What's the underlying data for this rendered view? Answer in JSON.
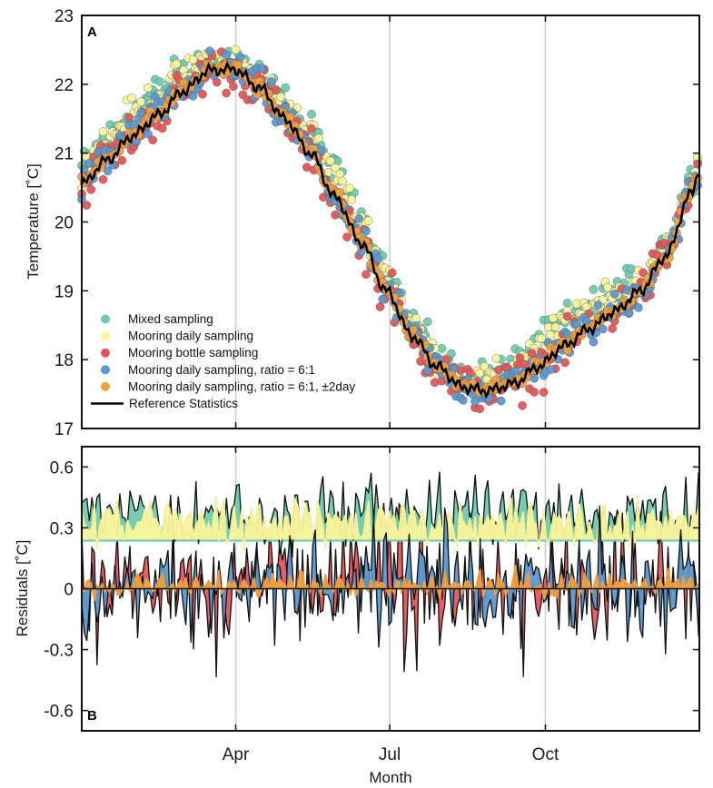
{
  "chart_data": [
    {
      "type": "scatter",
      "panel_label": "A",
      "xlabel": "",
      "ylabel": "Temperature [˚C]",
      "x_ticks": [
        {
          "label": "Apr",
          "day": 91
        },
        {
          "label": "Jul",
          "day": 182
        },
        {
          "label": "Oct",
          "day": 274
        }
      ],
      "xlim": [
        0,
        365
      ],
      "ylim": [
        17,
        23
      ],
      "yticks": [
        17,
        18,
        19,
        20,
        21,
        22,
        23
      ],
      "vertical_gridlines": true,
      "legend_position": "bottom-left",
      "reference_curve": {
        "name": "Reference Statistics",
        "color": "#000000",
        "days": [
          0,
          15,
          30,
          45,
          60,
          75,
          90,
          105,
          120,
          135,
          150,
          165,
          180,
          195,
          210,
          225,
          240,
          255,
          270,
          285,
          300,
          315,
          330,
          345,
          360,
          365
        ],
        "values": [
          20.55,
          20.9,
          21.25,
          21.55,
          21.9,
          22.2,
          22.22,
          21.95,
          21.5,
          21.0,
          20.35,
          19.7,
          19.0,
          18.35,
          17.9,
          17.6,
          17.55,
          17.65,
          17.9,
          18.2,
          18.45,
          18.7,
          19.0,
          19.5,
          20.4,
          20.75
        ]
      },
      "series": [
        {
          "name": "Mixed sampling",
          "color": "#6ecbb0",
          "offset_c": 0.35,
          "spread_c": 0.22
        },
        {
          "name": "Mooring daily sampling",
          "color": "#fbf59c",
          "offset_c": 0.33,
          "spread_c": 0.18
        },
        {
          "name": "Mooring bottle sampling",
          "color": "#e2565a",
          "offset_c": 0.0,
          "spread_c": 0.28
        },
        {
          "name": "Mooring daily sampling, ratio = 6:1",
          "color": "#5b98cf",
          "offset_c": 0.02,
          "spread_c": 0.22
        },
        {
          "name": "Mooring daily sampling, ratio = 6:1, ±2day",
          "color": "#f2a040",
          "offset_c": 0.03,
          "spread_c": 0.08
        }
      ],
      "legend_entries": [
        {
          "label": "Mixed sampling",
          "color": "#6ecbb0",
          "kind": "dot"
        },
        {
          "label": "Mooring daily sampling",
          "color": "#fbf59c",
          "kind": "dot"
        },
        {
          "label": "Mooring bottle sampling",
          "color": "#e2565a",
          "kind": "dot"
        },
        {
          "label": "Mooring daily sampling, ratio = 6:1",
          "color": "#5b98cf",
          "kind": "dot"
        },
        {
          "label": "Mooring daily sampling, ratio = 6:1, ±2day",
          "color": "#f2a040",
          "kind": "dot"
        },
        {
          "label": "Reference Statistics",
          "color": "#000000",
          "kind": "line"
        }
      ]
    },
    {
      "type": "area",
      "panel_label": "B",
      "xlabel": "Month",
      "ylabel": "Residuals [˚C]",
      "x_ticks": [
        {
          "label": "Apr",
          "day": 91
        },
        {
          "label": "Jul",
          "day": 182
        },
        {
          "label": "Oct",
          "day": 274
        }
      ],
      "xlim": [
        0,
        365
      ],
      "ylim": [
        -0.7,
        0.7
      ],
      "yticks": [
        0.6,
        0.3,
        0,
        -0.3,
        -0.6
      ],
      "ytick_labels": [
        "0.6",
        "0.3",
        "0",
        "-0.3",
        "-0.6"
      ],
      "zero_line": true,
      "series": [
        {
          "name": "Mixed sampling",
          "color": "#6ecbb0",
          "mean_c": 0.36,
          "amplitude_c": 0.16
        },
        {
          "name": "Mooring daily sampling",
          "color": "#fbf59c",
          "mean_c": 0.33,
          "amplitude_c": 0.11
        },
        {
          "name": "Mooring bottle sampling",
          "color": "#e2565a",
          "mean_c": 0.0,
          "amplitude_c": 0.3
        },
        {
          "name": "Mooring daily sampling, ratio = 6:1",
          "color": "#5b98cf",
          "mean_c": 0.02,
          "amplitude_c": 0.26
        },
        {
          "name": "Mooring daily sampling, ratio = 6:1, ±2day",
          "color": "#f2a040",
          "mean_c": 0.02,
          "amplitude_c": 0.06
        }
      ]
    }
  ]
}
